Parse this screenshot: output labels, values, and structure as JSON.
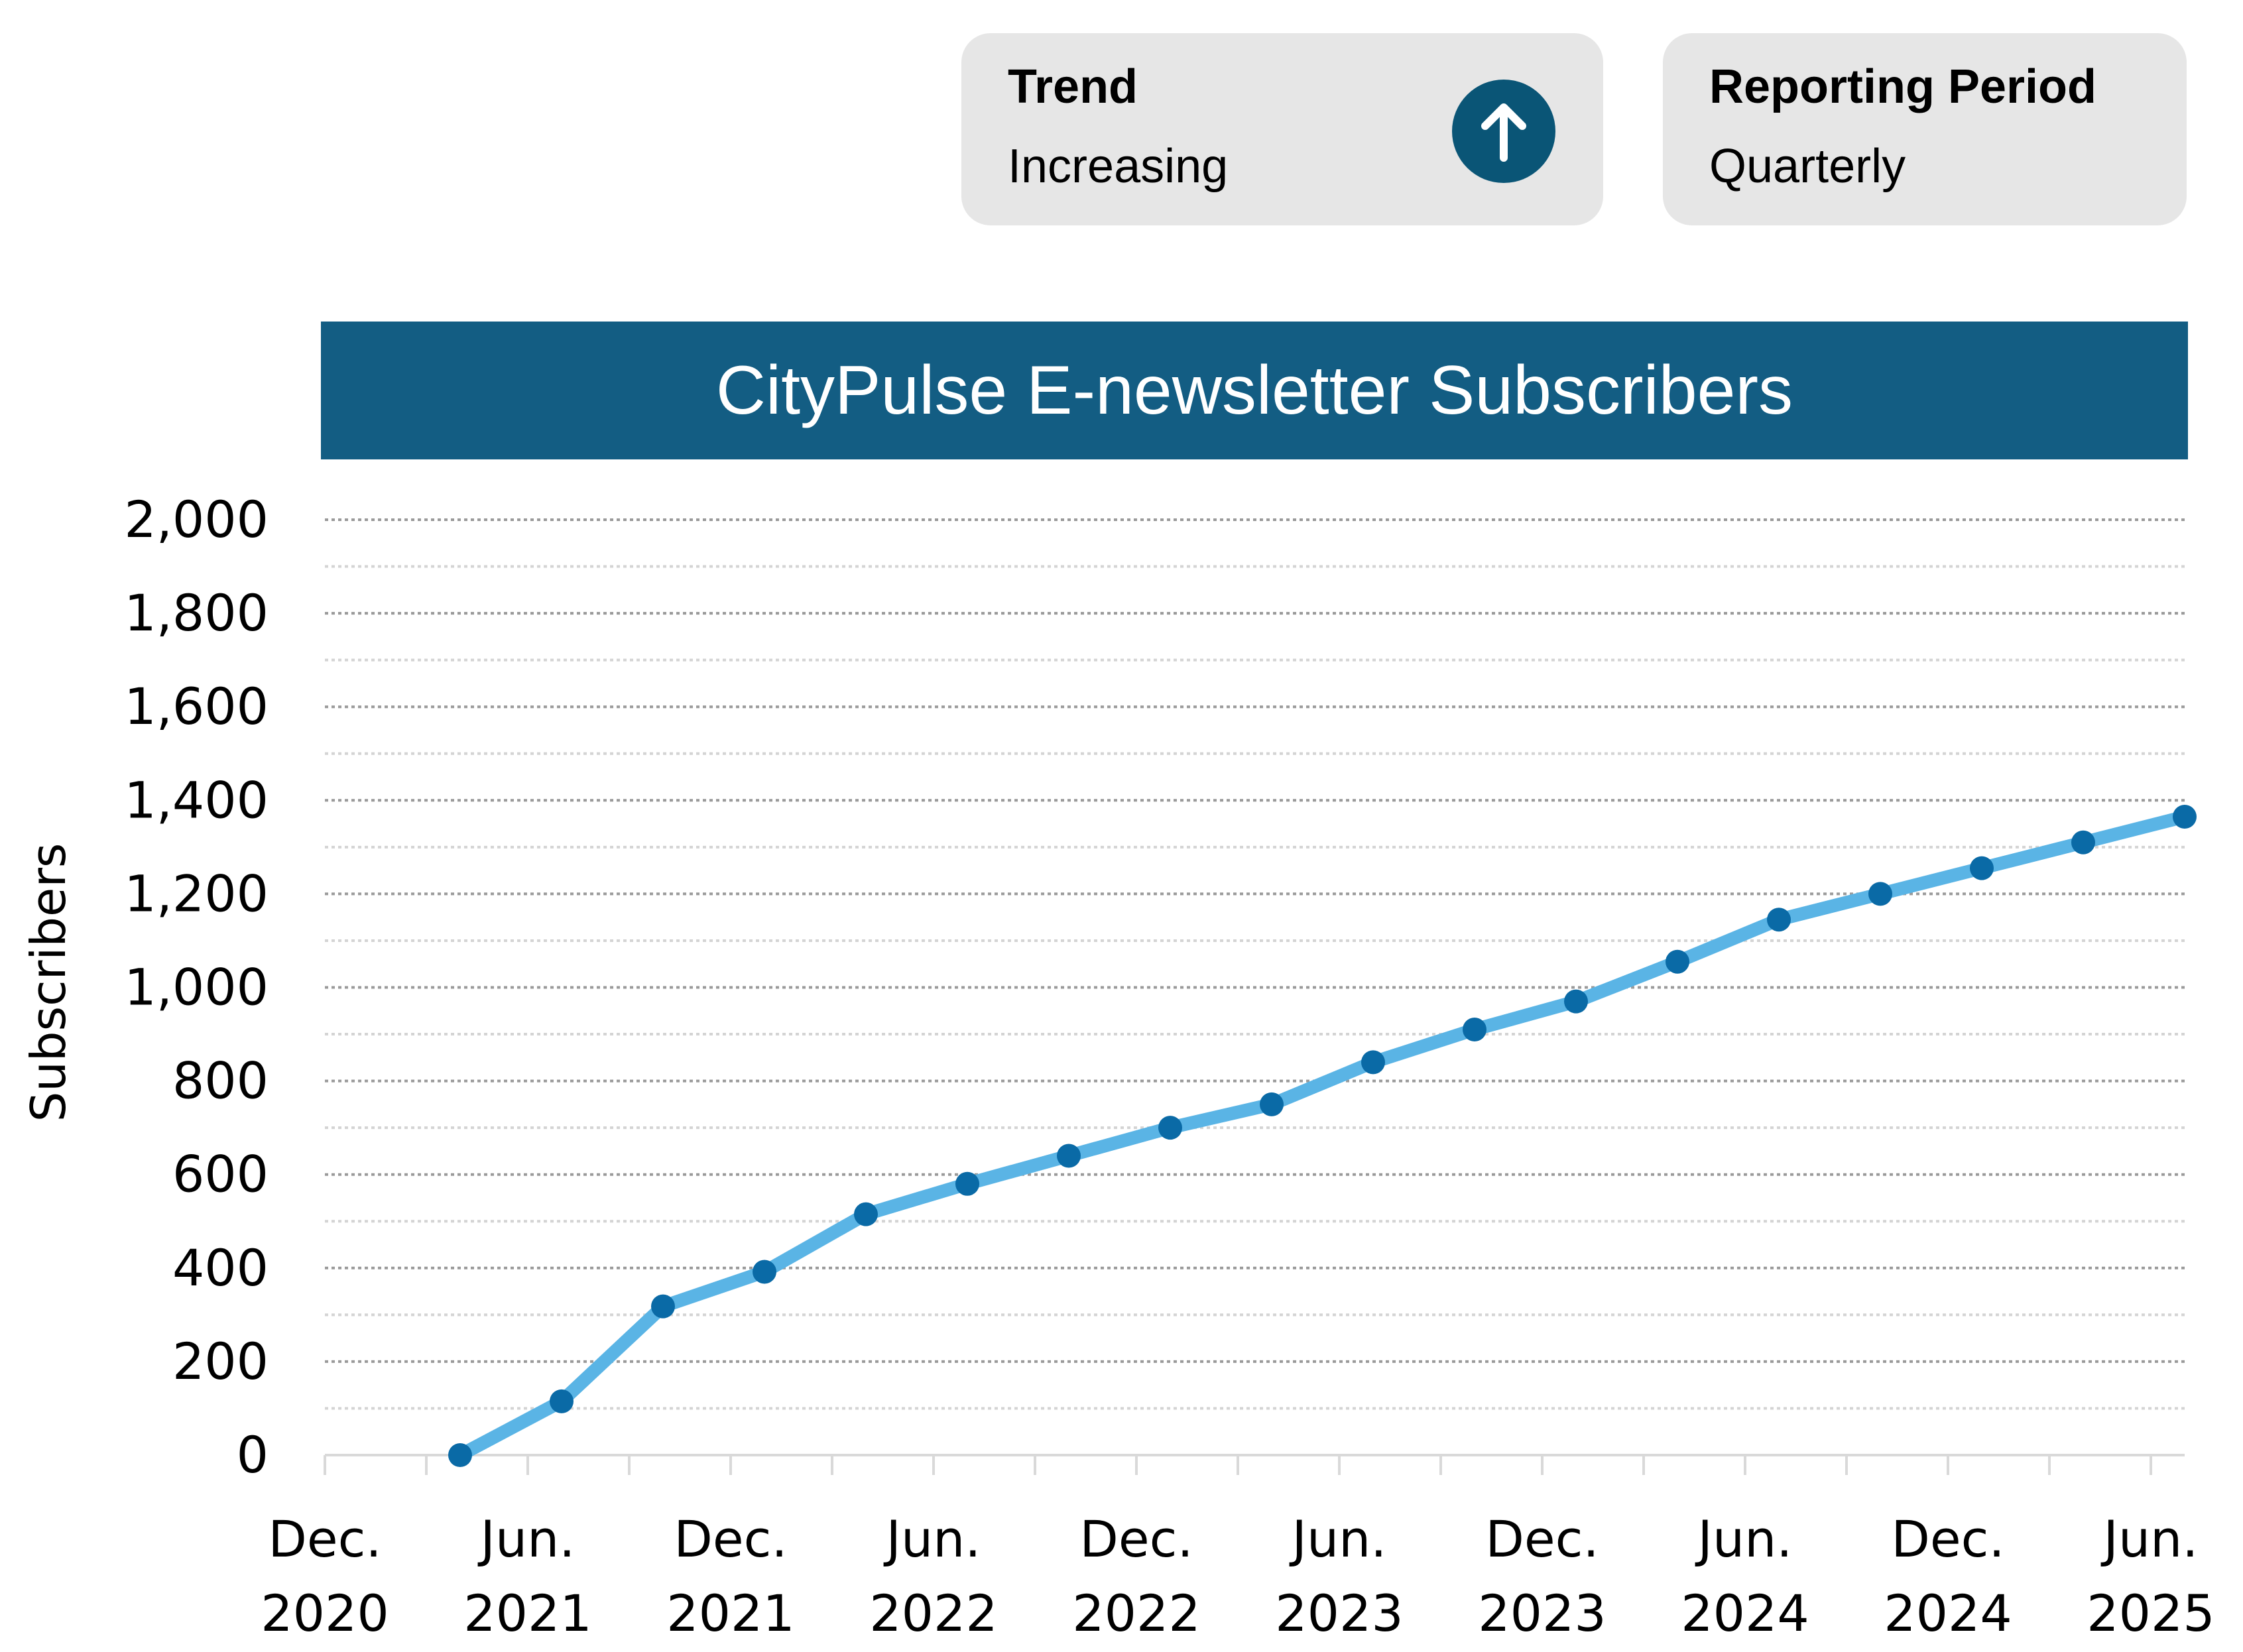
{
  "cards": {
    "trend": {
      "label": "Trend",
      "value": "Increasing",
      "icon": "arrow-up-circle-icon"
    },
    "period": {
      "label": "Reporting Period",
      "value": "Quarterly"
    }
  },
  "colors": {
    "title_bg": "#135d83",
    "line": "#5ab4e5",
    "marker": "#0a6aa6",
    "card_bg": "#e6e6e6",
    "trend_icon_bg": "#0a5576"
  },
  "chart_data": {
    "type": "line",
    "title": "CityPulse E-newsletter Subscribers",
    "ylabel": "Subscribers",
    "xlabel": "",
    "ylim": [
      0,
      2000
    ],
    "yticks": [
      "0",
      "200",
      "400",
      "600",
      "800",
      "1,000",
      "1,200",
      "1,400",
      "1,600",
      "1,800",
      "2,000"
    ],
    "ytick_values": [
      0,
      200,
      400,
      600,
      800,
      1000,
      1200,
      1400,
      1600,
      1800,
      2000
    ],
    "xlim": [
      "2020-12",
      "2025-07"
    ],
    "xticks": [
      {
        "month": "Dec.",
        "year": "2020",
        "x": "2020-12"
      },
      {
        "month": "Jun.",
        "year": "2021",
        "x": "2021-06"
      },
      {
        "month": "Dec.",
        "year": "2021",
        "x": "2021-12"
      },
      {
        "month": "Jun.",
        "year": "2022",
        "x": "2022-06"
      },
      {
        "month": "Dec.",
        "year": "2022",
        "x": "2022-12"
      },
      {
        "month": "Jun.",
        "year": "2023",
        "x": "2023-06"
      },
      {
        "month": "Dec.",
        "year": "2023",
        "x": "2023-12"
      },
      {
        "month": "Jun.",
        "year": "2024",
        "x": "2024-06"
      },
      {
        "month": "Dec.",
        "year": "2024",
        "x": "2024-12"
      },
      {
        "month": "Jun.",
        "year": "2025",
        "x": "2025-06"
      }
    ],
    "grid": true,
    "series": [
      {
        "x": [
          "2021-04",
          "2021-07",
          "2021-10",
          "2022-01",
          "2022-04",
          "2022-07",
          "2022-10",
          "2023-01",
          "2023-04",
          "2023-07",
          "2023-10",
          "2024-01",
          "2024-04",
          "2024-07",
          "2024-10",
          "2025-01",
          "2025-04",
          "2025-07"
        ],
        "y": [
          0,
          115,
          318,
          392,
          515,
          580,
          640,
          700,
          750,
          840,
          910,
          970,
          1055,
          1145,
          1200,
          1255,
          1310,
          1365
        ]
      }
    ]
  }
}
